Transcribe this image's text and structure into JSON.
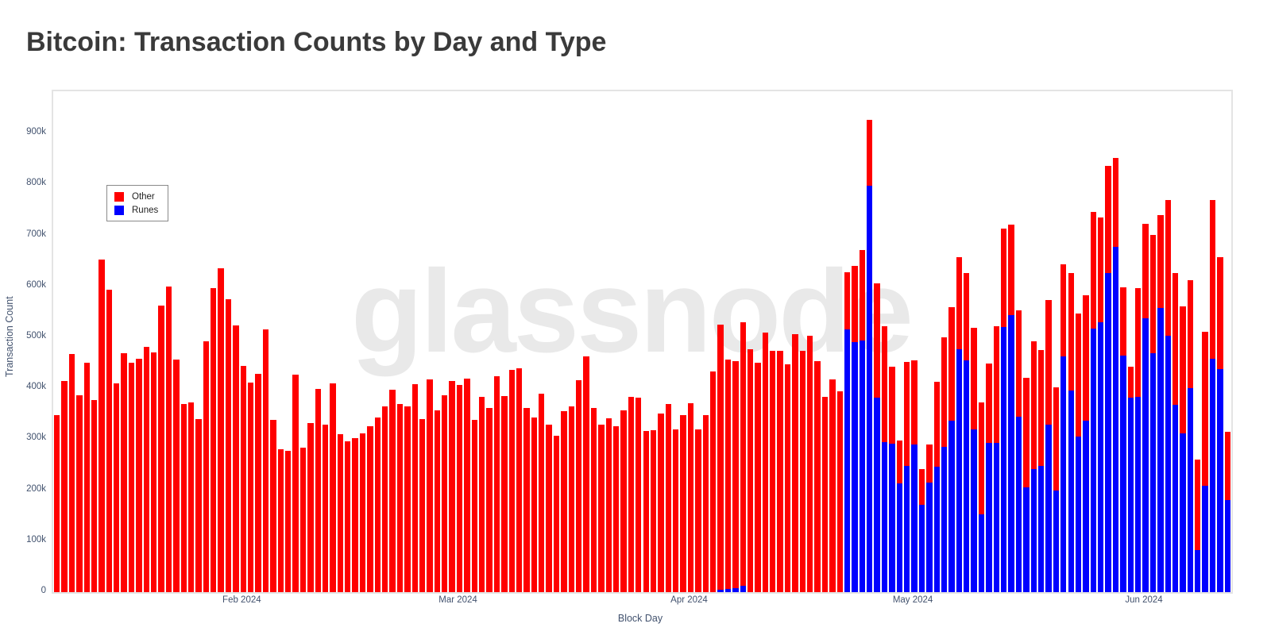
{
  "title": "Bitcoin: Transaction Counts by Day and Type",
  "watermark": "glassnode",
  "legend": {
    "items": [
      {
        "label": "Other",
        "color": "#ff0000"
      },
      {
        "label": "Runes",
        "color": "#0000ff"
      }
    ]
  },
  "y_axis": {
    "title": "Transaction Count",
    "tick_labels": [
      "0",
      "100k",
      "200k",
      "300k",
      "400k",
      "500k",
      "600k",
      "700k",
      "800k",
      "900k"
    ],
    "tick_values_k": [
      0,
      100,
      200,
      300,
      400,
      500,
      600,
      700,
      800,
      900
    ]
  },
  "x_axis": {
    "title": "Block Day",
    "ticks": [
      {
        "label": "Feb 2024",
        "bar_index": 25
      },
      {
        "label": "Mar 2024",
        "bar_index": 54
      },
      {
        "label": "Apr 2024",
        "bar_index": 85
      },
      {
        "label": "May 2024",
        "bar_index": 115
      },
      {
        "label": "Jun 2024",
        "bar_index": 146
      }
    ]
  },
  "chart_data": {
    "type": "bar",
    "stacked": true,
    "title": "Bitcoin: Transaction Counts by Day and Type",
    "xlabel": "Block Day",
    "ylabel": "Transaction Count",
    "x_is_daily_dates": true,
    "x_visible_tick_labels": [
      "Feb 2024",
      "Mar 2024",
      "Apr 2024",
      "May 2024",
      "Jun 2024"
    ],
    "ylim_k": [
      0,
      983
    ],
    "grid": false,
    "legend_position": "top-left-inside",
    "unit": "transactions, thousands (k)",
    "series": [
      {
        "name": "Other",
        "color": "#ff0000",
        "values_k": [
          348,
          414,
          468,
          386,
          451,
          377,
          653,
          593,
          409,
          469,
          450,
          458,
          482,
          470,
          563,
          600,
          457,
          369,
          372,
          339,
          493,
          597,
          636,
          575,
          523,
          444,
          412,
          429,
          515,
          338,
          281,
          278,
          427,
          284,
          332,
          399,
          329,
          409,
          310,
          296,
          302,
          311,
          325,
          343,
          365,
          397,
          370,
          364,
          408,
          340,
          418,
          357,
          387,
          414,
          406,
          419,
          338,
          383,
          362,
          424,
          385,
          436,
          439,
          361,
          342,
          389,
          328,
          307,
          355,
          365,
          416,
          463,
          361,
          328,
          341,
          325,
          356,
          383,
          381,
          317,
          318,
          350,
          370,
          320,
          348,
          371,
          320,
          348,
          433,
          521,
          451,
          446,
          517,
          476,
          450,
          509,
          473,
          474,
          447,
          506,
          473,
          503,
          453,
          384,
          418,
          394,
          112,
          151,
          177,
          130,
          225,
          227,
          151,
          85,
          204,
          165,
          69,
          75,
          167,
          215,
          223,
          182,
          172,
          199,
          219,
          155,
          229,
          192,
          178,
          208,
          216,
          252,
          227,
          246,
          203,
          181,
          230,
          241,
          246,
          228,
          205,
          210,
          175,
          134,
          62,
          214,
          186,
          232,
          183,
          266,
          259,
          249,
          213,
          178,
          302,
          311,
          220,
          134
        ]
      },
      {
        "name": "Runes",
        "color": "#0000ff",
        "values_k": [
          0,
          0,
          0,
          0,
          0,
          0,
          0,
          0,
          0,
          0,
          0,
          0,
          0,
          0,
          0,
          0,
          0,
          0,
          0,
          0,
          0,
          0,
          0,
          0,
          0,
          0,
          0,
          0,
          0,
          0,
          0,
          0,
          0,
          0,
          0,
          0,
          0,
          0,
          0,
          0,
          0,
          0,
          0,
          0,
          0,
          0,
          0,
          0,
          0,
          0,
          0,
          0,
          0,
          0,
          0,
          0,
          0,
          0,
          0,
          0,
          0,
          0,
          0,
          0,
          0,
          0,
          0,
          0,
          0,
          0,
          0,
          0,
          0,
          0,
          0,
          0,
          0,
          0,
          0,
          0,
          0,
          0,
          0,
          0,
          0,
          0,
          0,
          0,
          0,
          4,
          6,
          8,
          13,
          0,
          0,
          0,
          0,
          0,
          0,
          0,
          0,
          0,
          0,
          0,
          0,
          0,
          516,
          490,
          494,
          797,
          381,
          295,
          292,
          213,
          248,
          290,
          172,
          215,
          246,
          285,
          336,
          476,
          455,
          320,
          153,
          293,
          293,
          521,
          543,
          345,
          205,
          241,
          248,
          328,
          199,
          463,
          396,
          306,
          336,
          518,
          530,
          626,
          677,
          465,
          381,
          383,
          537,
          469,
          557,
          503,
          367,
          312,
          400,
          82,
          209,
          458,
          438,
          180
        ]
      }
    ]
  }
}
